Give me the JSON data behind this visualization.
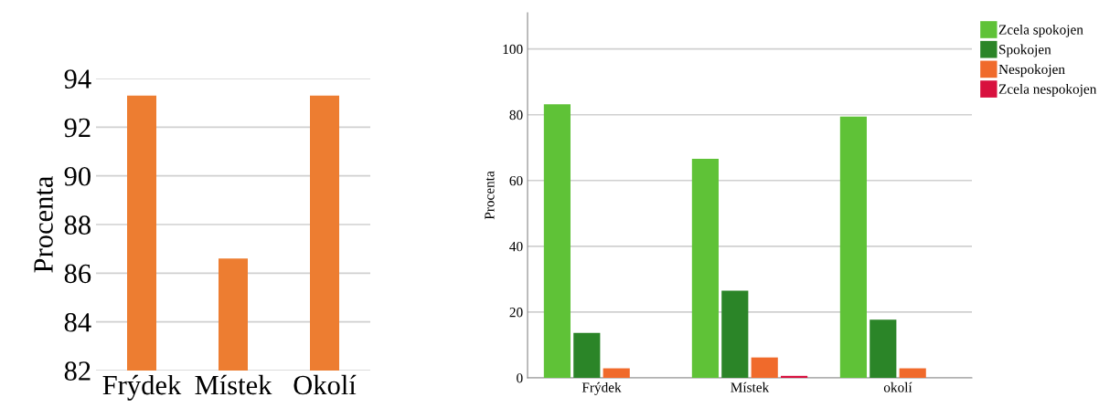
{
  "chart_data": [
    {
      "type": "bar",
      "ylabel": "Procenta",
      "categories": [
        "Frýdek",
        "Místek",
        "Okolí"
      ],
      "values": [
        93.3,
        86.6,
        93.3
      ],
      "color": "#ed7d31",
      "ylim": [
        82,
        94
      ],
      "yticks": [
        82,
        84,
        86,
        88,
        90,
        92,
        94
      ],
      "grid": "y",
      "legend": false
    },
    {
      "type": "bar",
      "ylabel": "Procenta",
      "categories": [
        "Frýdek",
        "Místek",
        "okolí"
      ],
      "series": [
        {
          "name": "Zcela spokojen",
          "color": "#5fc237",
          "values": [
            83.2,
            66.6,
            79.4
          ]
        },
        {
          "name": "Spokojen",
          "color": "#2b8528",
          "values": [
            13.7,
            26.5,
            17.7
          ]
        },
        {
          "name": "Nespokojen",
          "color": "#f06a2b",
          "values": [
            2.9,
            6.2,
            2.9
          ]
        },
        {
          "name": "Zcela nespokojen",
          "color": "#d8103e",
          "values": [
            null,
            0.6,
            null
          ]
        }
      ],
      "ylim": [
        0,
        111
      ],
      "yticks": [
        0,
        20,
        40,
        60,
        80,
        100
      ],
      "grid": "y",
      "legend": "top right"
    }
  ]
}
